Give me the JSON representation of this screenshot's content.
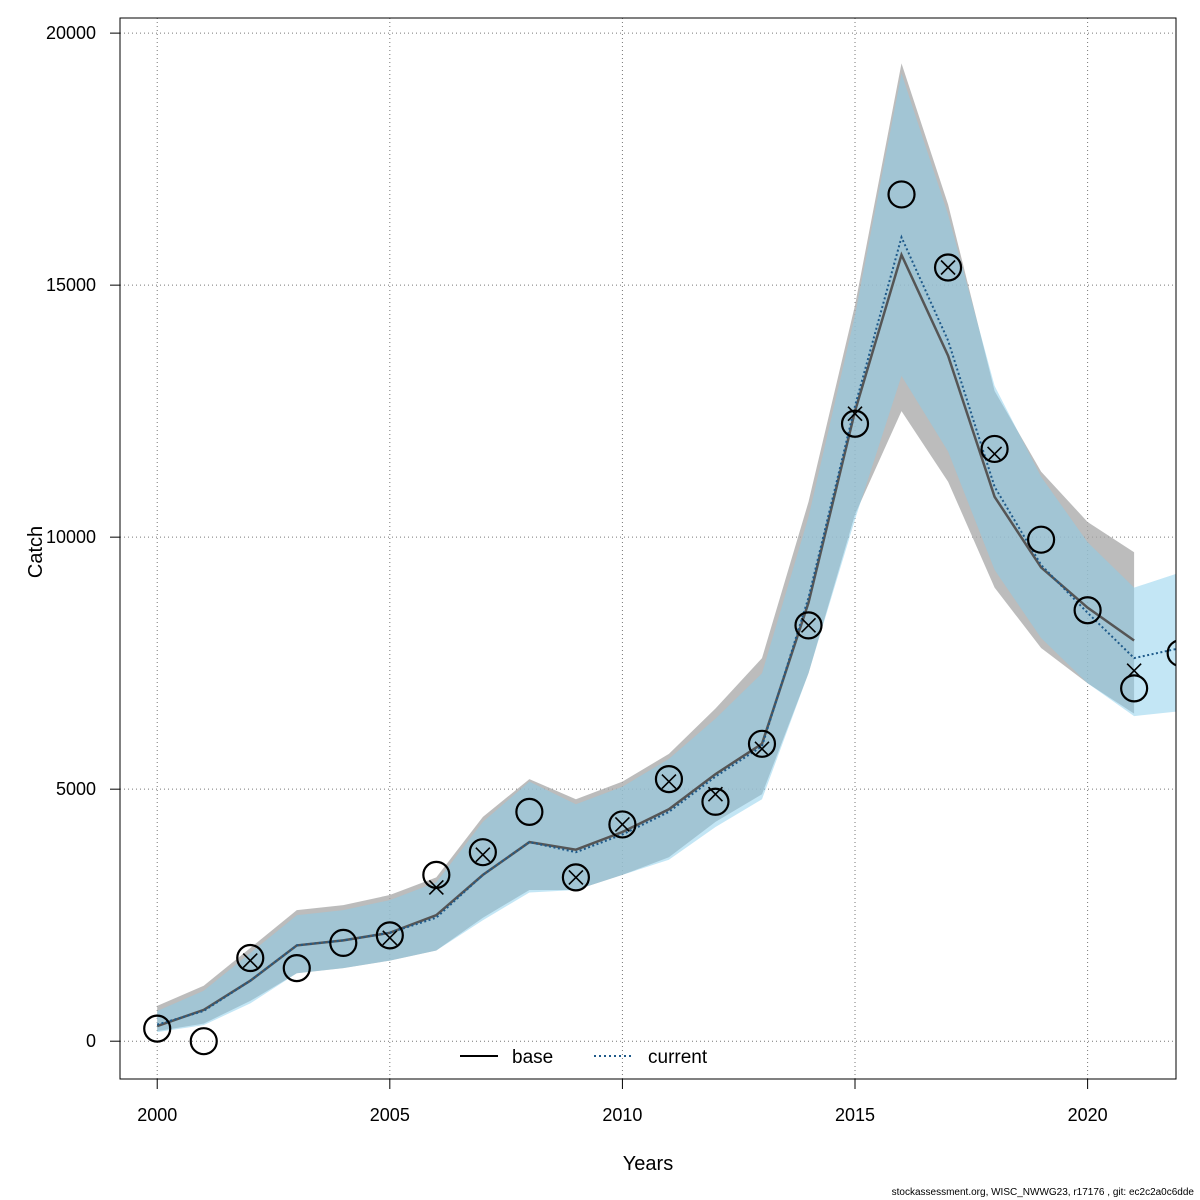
{
  "chart_data": {
    "type": "line",
    "title": "",
    "xlabel": "Years",
    "ylabel": "Catch",
    "xlim": [
      1999.2,
      2021.9
    ],
    "ylim": [
      -750,
      20300
    ],
    "xticks": [
      2000,
      2005,
      2010,
      2015,
      2020
    ],
    "yticks": [
      0,
      5000,
      10000,
      15000,
      20000
    ],
    "grid": true,
    "legend_position": "bottom",
    "legend": [
      {
        "name": "base",
        "style": "solid",
        "color": "#000000"
      },
      {
        "name": "current",
        "style": "dotted",
        "color": "#1f5a8a"
      }
    ],
    "colors": {
      "base_band": "#a6a6a6",
      "current_band": "#87ceeb",
      "base_line": "#000000",
      "current_line": "#1f5a8a",
      "grid": "#777777"
    },
    "series": [
      {
        "name": "base",
        "x": [
          2000,
          2001,
          2002,
          2003,
          2004,
          2005,
          2006,
          2007,
          2008,
          2009,
          2010,
          2011,
          2012,
          2013,
          2014,
          2015,
          2016,
          2017,
          2018,
          2019,
          2020,
          2021
        ],
        "values": [
          300,
          620,
          1200,
          1900,
          2000,
          2150,
          2500,
          3300,
          3950,
          3800,
          4150,
          4600,
          5300,
          5900,
          8700,
          12500,
          15600,
          13600,
          10800,
          9400,
          8600,
          7950
        ],
        "upper": [
          700,
          1100,
          1850,
          2600,
          2700,
          2900,
          3250,
          4450,
          5200,
          4800,
          5150,
          5700,
          6600,
          7600,
          10700,
          14600,
          19400,
          16600,
          12900,
          11300,
          10300,
          9700
        ],
        "lower": [
          200,
          350,
          800,
          1350,
          1450,
          1600,
          1800,
          2450,
          3000,
          3000,
          3300,
          3650,
          4350,
          4900,
          7300,
          10450,
          12500,
          11100,
          9000,
          7800,
          7100,
          6500
        ]
      },
      {
        "name": "current",
        "x": [
          2000,
          2001,
          2002,
          2003,
          2004,
          2005,
          2006,
          2007,
          2008,
          2009,
          2010,
          2011,
          2012,
          2013,
          2014,
          2015,
          2016,
          2017,
          2018,
          2019,
          2020,
          2021,
          2022
        ],
        "values": [
          330,
          600,
          1200,
          1900,
          2000,
          2150,
          2450,
          3300,
          3950,
          3750,
          4100,
          4550,
          5250,
          5850,
          8800,
          12600,
          15950,
          13900,
          11000,
          9450,
          8500,
          7600,
          7800
        ],
        "upper": [
          600,
          1000,
          1750,
          2500,
          2600,
          2800,
          3150,
          4350,
          5150,
          4700,
          5050,
          5600,
          6400,
          7300,
          10400,
          14400,
          19200,
          16400,
          13000,
          11200,
          9900,
          9000,
          9300
        ],
        "lower": [
          180,
          320,
          750,
          1350,
          1450,
          1600,
          1800,
          2400,
          2950,
          3000,
          3300,
          3600,
          4250,
          4800,
          7300,
          10350,
          13200,
          11700,
          9350,
          8000,
          7100,
          6450,
          6550
        ]
      }
    ],
    "observed": {
      "x": [
        2000,
        2001,
        2002,
        2003,
        2004,
        2005,
        2006,
        2007,
        2008,
        2009,
        2010,
        2011,
        2012,
        2013,
        2014,
        2015,
        2016,
        2017,
        2018,
        2019,
        2020,
        2021,
        2022
      ],
      "values": [
        250,
        0,
        1650,
        1450,
        1950,
        2100,
        3300,
        3750,
        4550,
        3250,
        4300,
        5200,
        4750,
        5900,
        8250,
        12250,
        16800,
        15350,
        11750,
        9950,
        8550,
        7000,
        7700
      ]
    },
    "predicted_markers": {
      "x": [
        2002,
        2005,
        2006,
        2007,
        2009,
        2010,
        2011,
        2012,
        2013,
        2014,
        2015,
        2017,
        2018,
        2021
      ],
      "values": [
        1600,
        2050,
        3050,
        3700,
        3250,
        4300,
        5150,
        4900,
        5800,
        8250,
        12450,
        15350,
        11650,
        7350
      ]
    }
  },
  "footer": "stockassessment.org, WISC_NWWG23, r17176 , git: ec2c2a0c6dde"
}
